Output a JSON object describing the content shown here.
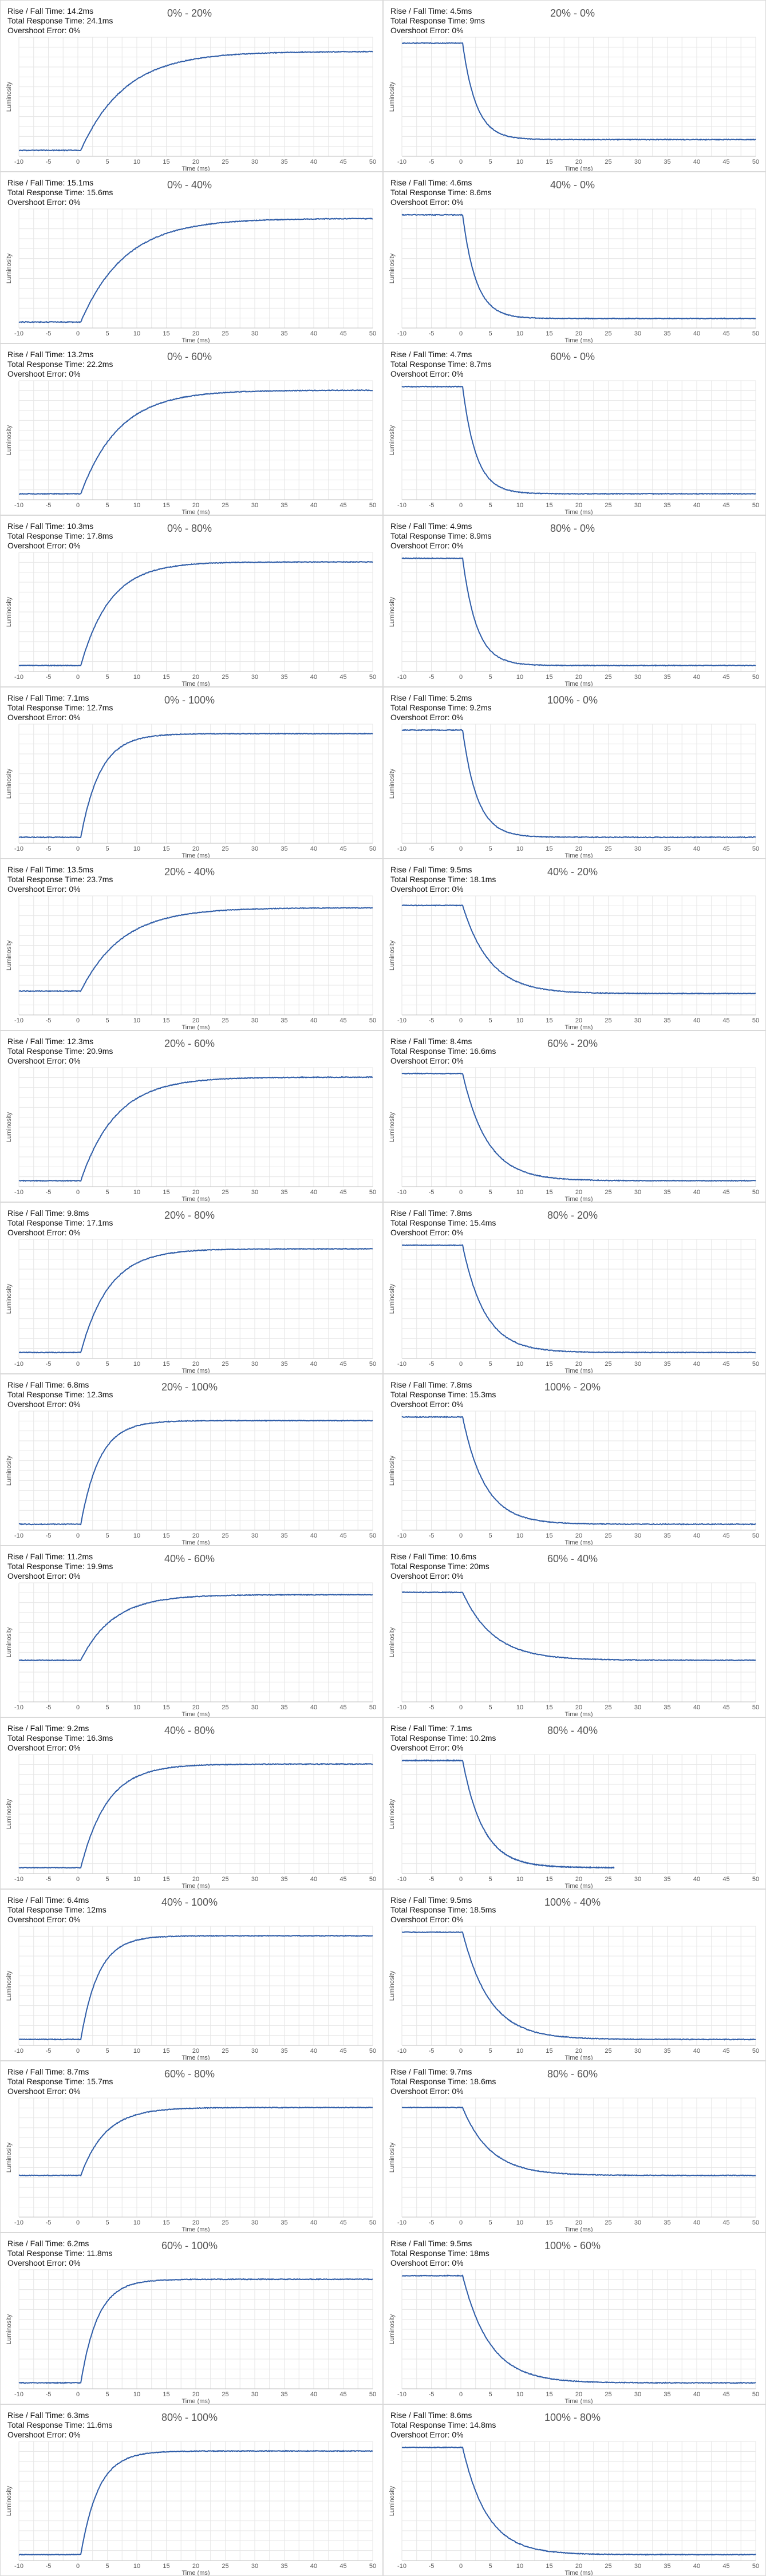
{
  "chart_data": [
    {
      "type": "line",
      "title": "0% - 20%",
      "rise_fall": "Rise / Fall Time: 14.2ms",
      "total": "Total Response Time: 24.1ms",
      "overshoot": "Overshoot Error: 0%",
      "start": 0.05,
      "end": 0.88,
      "tau": 7.5,
      "lag": 0.5,
      "xlabel": "Time (ms)",
      "ylabel": "Luminosity",
      "xlim": [
        -10,
        50
      ],
      "xticks": [
        -10,
        -5,
        0,
        5,
        10,
        15,
        20,
        25,
        30,
        35,
        40,
        45,
        50
      ]
    },
    {
      "type": "line",
      "title": "20% - 0%",
      "rise_fall": "Rise / Fall Time: 4.5ms",
      "total": "Total Response Time: 9ms",
      "overshoot": "Overshoot Error: 0%",
      "start": 0.95,
      "end": 0.14,
      "tau": 2.3,
      "lag": 0.3,
      "xlabel": "Time (ms)",
      "ylabel": "Luminosity",
      "xlim": [
        -10,
        50
      ],
      "xticks": [
        -10,
        -5,
        0,
        5,
        10,
        15,
        20,
        25,
        30,
        35,
        40,
        45,
        50
      ]
    },
    {
      "type": "line",
      "title": "0% - 40%",
      "rise_fall": "Rise / Fall Time: 15.1ms",
      "total": "Total Response Time: 15.6ms",
      "overshoot": "Overshoot Error: 0%",
      "start": 0.05,
      "end": 0.92,
      "tau": 7.5,
      "lag": 0.5,
      "xlabel": "Time (ms)",
      "ylabel": "Luminosity",
      "xlim": [
        -10,
        50
      ],
      "xticks": [
        -10,
        -5,
        0,
        5,
        10,
        15,
        20,
        25,
        30,
        35,
        40,
        45,
        50
      ]
    },
    {
      "type": "line",
      "title": "40% - 0%",
      "rise_fall": "Rise / Fall Time: 4.6ms",
      "total": "Total Response Time: 8.6ms",
      "overshoot": "Overshoot Error: 0%",
      "start": 0.95,
      "end": 0.08,
      "tau": 2.3,
      "lag": 0.3,
      "xlabel": "Time (ms)",
      "ylabel": "Luminosity",
      "xlim": [
        -10,
        50
      ],
      "xticks": [
        -10,
        -5,
        0,
        5,
        10,
        15,
        20,
        25,
        30,
        35,
        40,
        45,
        50
      ]
    },
    {
      "type": "line",
      "title": "0% - 60%",
      "rise_fall": "Rise / Fall Time: 13.2ms",
      "total": "Total Response Time: 22.2ms",
      "overshoot": "Overshoot Error: 0%",
      "start": 0.05,
      "end": 0.92,
      "tau": 6.5,
      "lag": 0.5,
      "xlabel": "Time (ms)",
      "ylabel": "Luminosity",
      "xlim": [
        -10,
        50
      ],
      "xticks": [
        -10,
        -5,
        0,
        5,
        10,
        15,
        20,
        25,
        30,
        35,
        40,
        45,
        50
      ]
    },
    {
      "type": "line",
      "title": "60% - 0%",
      "rise_fall": "Rise / Fall Time: 4.7ms",
      "total": "Total Response Time: 8.7ms",
      "overshoot": "Overshoot Error: 0%",
      "start": 0.95,
      "end": 0.05,
      "tau": 2.3,
      "lag": 0.3,
      "xlabel": "Time (ms)",
      "ylabel": "Luminosity",
      "xlim": [
        -10,
        50
      ],
      "xticks": [
        -10,
        -5,
        0,
        5,
        10,
        15,
        20,
        25,
        30,
        35,
        40,
        45,
        50
      ]
    },
    {
      "type": "line",
      "title": "0% - 80%",
      "rise_fall": "Rise / Fall Time: 10.3ms",
      "total": "Total Response Time: 17.8ms",
      "overshoot": "Overshoot Error: 0%",
      "start": 0.05,
      "end": 0.92,
      "tau": 5.0,
      "lag": 0.5,
      "xlabel": "Time (ms)",
      "ylabel": "Luminosity",
      "xlim": [
        -10,
        50
      ],
      "xticks": [
        -10,
        -5,
        0,
        5,
        10,
        15,
        20,
        25,
        30,
        35,
        40,
        45,
        50
      ]
    },
    {
      "type": "line",
      "title": "80% - 0%",
      "rise_fall": "Rise / Fall Time: 4.9ms",
      "total": "Total Response Time: 8.9ms",
      "overshoot": "Overshoot Error: 0%",
      "start": 0.95,
      "end": 0.05,
      "tau": 2.4,
      "lag": 0.3,
      "xlabel": "Time (ms)",
      "ylabel": "Luminosity",
      "xlim": [
        -10,
        50
      ],
      "xticks": [
        -10,
        -5,
        0,
        5,
        10,
        15,
        20,
        25,
        30,
        35,
        40,
        45,
        50
      ]
    },
    {
      "type": "line",
      "title": "0% - 100%",
      "rise_fall": "Rise / Fall Time: 7.1ms",
      "total": "Total Response Time: 12.7ms",
      "overshoot": "Overshoot Error: 0%",
      "start": 0.05,
      "end": 0.92,
      "tau": 3.3,
      "lag": 0.5,
      "xlabel": "Time (ms)",
      "ylabel": "Luminosity",
      "xlim": [
        -10,
        50
      ],
      "xticks": [
        -10,
        -5,
        0,
        5,
        10,
        15,
        20,
        25,
        30,
        35,
        40,
        45,
        50
      ]
    },
    {
      "type": "line",
      "title": "100% - 0%",
      "rise_fall": "Rise / Fall Time: 5.2ms",
      "total": "Total Response Time: 9.2ms",
      "overshoot": "Overshoot Error: 0%",
      "start": 0.95,
      "end": 0.05,
      "tau": 2.5,
      "lag": 0.3,
      "xlabel": "Time (ms)",
      "ylabel": "Luminosity",
      "xlim": [
        -10,
        50
      ],
      "xticks": [
        -10,
        -5,
        0,
        5,
        10,
        15,
        20,
        25,
        30,
        35,
        40,
        45,
        50
      ]
    },
    {
      "type": "line",
      "title": "20% - 40%",
      "rise_fall": "Rise / Fall Time: 13.5ms",
      "total": "Total Response Time: 23.7ms",
      "overshoot": "Overshoot Error: 0%",
      "start": 0.2,
      "end": 0.9,
      "tau": 7.0,
      "lag": 0.5,
      "xlabel": "Time (ms)",
      "ylabel": "Luminosity",
      "xlim": [
        -10,
        50
      ],
      "xticks": [
        -10,
        -5,
        0,
        5,
        10,
        15,
        20,
        25,
        30,
        35,
        40,
        45,
        50
      ]
    },
    {
      "type": "line",
      "title": "40% - 20%",
      "rise_fall": "Rise / Fall Time: 9.5ms",
      "total": "Total Response Time: 18.1ms",
      "overshoot": "Overshoot Error: 0%",
      "start": 0.92,
      "end": 0.18,
      "tau": 4.6,
      "lag": 0.3,
      "xlabel": "Time (ms)",
      "ylabel": "Luminosity",
      "xlim": [
        -10,
        50
      ],
      "xticks": [
        -10,
        -5,
        0,
        5,
        10,
        15,
        20,
        25,
        30,
        35,
        40,
        45,
        50
      ]
    },
    {
      "type": "line",
      "title": "20% - 60%",
      "rise_fall": "Rise / Fall Time: 12.3ms",
      "total": "Total Response Time: 20.9ms",
      "overshoot": "Overshoot Error: 0%",
      "start": 0.05,
      "end": 0.92,
      "tau": 6.0,
      "lag": 0.5,
      "xlabel": "Time (ms)",
      "ylabel": "Luminosity",
      "xlim": [
        -10,
        50
      ],
      "xticks": [
        -10,
        -5,
        0,
        5,
        10,
        15,
        20,
        25,
        30,
        35,
        40,
        45,
        50
      ]
    },
    {
      "type": "line",
      "title": "60% - 20%",
      "rise_fall": "Rise / Fall Time: 8.4ms",
      "total": "Total Response Time: 16.6ms",
      "overshoot": "Overshoot Error: 0%",
      "start": 0.95,
      "end": 0.05,
      "tau": 4.2,
      "lag": 0.3,
      "xlabel": "Time (ms)",
      "ylabel": "Luminosity",
      "xlim": [
        -10,
        50
      ],
      "xticks": [
        -10,
        -5,
        0,
        5,
        10,
        15,
        20,
        25,
        30,
        35,
        40,
        45,
        50
      ]
    },
    {
      "type": "line",
      "title": "20% - 80%",
      "rise_fall": "Rise / Fall Time: 9.8ms",
      "total": "Total Response Time: 17.1ms",
      "overshoot": "Overshoot Error: 0%",
      "start": 0.05,
      "end": 0.92,
      "tau": 4.8,
      "lag": 0.5,
      "xlabel": "Time (ms)",
      "ylabel": "Luminosity",
      "xlim": [
        -10,
        50
      ],
      "xticks": [
        -10,
        -5,
        0,
        5,
        10,
        15,
        20,
        25,
        30,
        35,
        40,
        45,
        50
      ]
    },
    {
      "type": "line",
      "title": "80% - 20%",
      "rise_fall": "Rise / Fall Time: 7.8ms",
      "total": "Total Response Time: 15.4ms",
      "overshoot": "Overshoot Error: 0%",
      "start": 0.95,
      "end": 0.05,
      "tau": 3.8,
      "lag": 0.3,
      "xlabel": "Time (ms)",
      "ylabel": "Luminosity",
      "xlim": [
        -10,
        50
      ],
      "xticks": [
        -10,
        -5,
        0,
        5,
        10,
        15,
        20,
        25,
        30,
        35,
        40,
        45,
        50
      ]
    },
    {
      "type": "line",
      "title": "20% - 100%",
      "rise_fall": "Rise / Fall Time: 6.8ms",
      "total": "Total Response Time: 12.3ms",
      "overshoot": "Overshoot Error: 0%",
      "start": 0.05,
      "end": 0.92,
      "tau": 3.2,
      "lag": 0.5,
      "xlabel": "Time (ms)",
      "ylabel": "Luminosity",
      "xlim": [
        -10,
        50
      ],
      "xticks": [
        -10,
        -5,
        0,
        5,
        10,
        15,
        20,
        25,
        30,
        35,
        40,
        45,
        50
      ]
    },
    {
      "type": "line",
      "title": "100% - 20%",
      "rise_fall": "Rise / Fall Time: 7.8ms",
      "total": "Total Response Time: 15.3ms",
      "overshoot": "Overshoot Error: 0%",
      "start": 0.95,
      "end": 0.05,
      "tau": 3.8,
      "lag": 0.3,
      "xlabel": "Time (ms)",
      "ylabel": "Luminosity",
      "xlim": [
        -10,
        50
      ],
      "xticks": [
        -10,
        -5,
        0,
        5,
        10,
        15,
        20,
        25,
        30,
        35,
        40,
        45,
        50
      ]
    },
    {
      "type": "line",
      "title": "40% - 60%",
      "rise_fall": "Rise / Fall Time: 11.2ms",
      "total": "Total Response Time: 19.9ms",
      "overshoot": "Overshoot Error: 0%",
      "start": 0.35,
      "end": 0.9,
      "tau": 5.5,
      "lag": 0.5,
      "xlabel": "Time (ms)",
      "ylabel": "Luminosity",
      "xlim": [
        -10,
        50
      ],
      "xticks": [
        -10,
        -5,
        0,
        5,
        10,
        15,
        20,
        25,
        30,
        35,
        40,
        45,
        50
      ]
    },
    {
      "type": "line",
      "title": "60% - 40%",
      "rise_fall": "Rise / Fall Time: 10.6ms",
      "total": "Total Response Time: 20ms",
      "overshoot": "Overshoot Error: 0%",
      "start": 0.92,
      "end": 0.35,
      "tau": 5.2,
      "lag": 0.3,
      "xlabel": "Time (ms)",
      "ylabel": "Luminosity",
      "xlim": [
        -10,
        50
      ],
      "xticks": [
        -10,
        -5,
        0,
        5,
        10,
        15,
        20,
        25,
        30,
        35,
        40,
        45,
        50
      ]
    },
    {
      "type": "line",
      "title": "40% - 80%",
      "rise_fall": "Rise / Fall Time: 9.2ms",
      "total": "Total Response Time: 16.3ms",
      "overshoot": "Overshoot Error: 0%",
      "start": 0.05,
      "end": 0.92,
      "tau": 4.5,
      "lag": 0.5,
      "xlabel": "Time (ms)",
      "ylabel": "Luminosity",
      "xlim": [
        -10,
        50
      ],
      "xticks": [
        -10,
        -5,
        0,
        5,
        10,
        15,
        20,
        25,
        30,
        35,
        40,
        45,
        50
      ]
    },
    {
      "type": "line",
      "title": "80% - 40%",
      "rise_fall": "Rise / Fall Time: 7.1ms",
      "total": "Total Response Time: 10.2ms",
      "overshoot": "Overshoot Error: 0%",
      "start": 0.95,
      "end": 0.05,
      "tau": 3.5,
      "lag": 0.3,
      "xmax_data": 26,
      "xlabel": "Time (ms)",
      "ylabel": "Luminosity",
      "xlim": [
        -10,
        50
      ],
      "xticks": [
        -10,
        -5,
        0,
        5,
        10,
        15,
        20,
        25,
        30,
        35,
        40,
        45,
        50
      ]
    },
    {
      "type": "line",
      "title": "40% - 100%",
      "rise_fall": "Rise / Fall Time: 6.4ms",
      "total": "Total Response Time: 12ms",
      "overshoot": "Overshoot Error: 0%",
      "start": 0.05,
      "end": 0.92,
      "tau": 3.0,
      "lag": 0.5,
      "xlabel": "Time (ms)",
      "ylabel": "Luminosity",
      "xlim": [
        -10,
        50
      ],
      "xticks": [
        -10,
        -5,
        0,
        5,
        10,
        15,
        20,
        25,
        30,
        35,
        40,
        45,
        50
      ]
    },
    {
      "type": "line",
      "title": "100% - 40%",
      "rise_fall": "Rise / Fall Time: 9.5ms",
      "total": "Total Response Time: 18.5ms",
      "overshoot": "Overshoot Error: 0%",
      "start": 0.95,
      "end": 0.05,
      "tau": 4.6,
      "lag": 0.3,
      "xlabel": "Time (ms)",
      "ylabel": "Luminosity",
      "xlim": [
        -10,
        50
      ],
      "xticks": [
        -10,
        -5,
        0,
        5,
        10,
        15,
        20,
        25,
        30,
        35,
        40,
        45,
        50
      ]
    },
    {
      "type": "line",
      "title": "60% - 80%",
      "rise_fall": "Rise / Fall Time: 8.7ms",
      "total": "Total Response Time: 15.7ms",
      "overshoot": "Overshoot Error: 0%",
      "start": 0.35,
      "end": 0.92,
      "tau": 4.2,
      "lag": 0.5,
      "xlabel": "Time (ms)",
      "ylabel": "Luminosity",
      "xlim": [
        -10,
        50
      ],
      "xticks": [
        -10,
        -5,
        0,
        5,
        10,
        15,
        20,
        25,
        30,
        35,
        40,
        45,
        50
      ]
    },
    {
      "type": "line",
      "title": "80% - 60%",
      "rise_fall": "Rise / Fall Time: 9.7ms",
      "total": "Total Response Time: 18.6ms",
      "overshoot": "Overshoot Error: 0%",
      "start": 0.92,
      "end": 0.35,
      "tau": 4.7,
      "lag": 0.3,
      "xlabel": "Time (ms)",
      "ylabel": "Luminosity",
      "xlim": [
        -10,
        50
      ],
      "xticks": [
        -10,
        -5,
        0,
        5,
        10,
        15,
        20,
        25,
        30,
        35,
        40,
        45,
        50
      ]
    },
    {
      "type": "line",
      "title": "60% - 100%",
      "rise_fall": "Rise / Fall Time: 6.2ms",
      "total": "Total Response Time: 11.8ms",
      "overshoot": "Overshoot Error: 0%",
      "start": 0.05,
      "end": 0.92,
      "tau": 2.9,
      "lag": 0.5,
      "xlabel": "Time (ms)",
      "ylabel": "Luminosity",
      "xlim": [
        -10,
        50
      ],
      "xticks": [
        -10,
        -5,
        0,
        5,
        10,
        15,
        20,
        25,
        30,
        35,
        40,
        45,
        50
      ]
    },
    {
      "type": "line",
      "title": "100% - 60%",
      "rise_fall": "Rise / Fall Time: 9.5ms",
      "total": "Total Response Time: 18ms",
      "overshoot": "Overshoot Error: 0%",
      "start": 0.95,
      "end": 0.05,
      "tau": 4.6,
      "lag": 0.3,
      "xlabel": "Time (ms)",
      "ylabel": "Luminosity",
      "xlim": [
        -10,
        50
      ],
      "xticks": [
        -10,
        -5,
        0,
        5,
        10,
        15,
        20,
        25,
        30,
        35,
        40,
        45,
        50
      ]
    },
    {
      "type": "line",
      "title": "80% - 100%",
      "rise_fall": "Rise / Fall Time: 6.3ms",
      "total": "Total Response Time: 11.6ms",
      "overshoot": "Overshoot Error: 0%",
      "start": 0.05,
      "end": 0.92,
      "tau": 3.0,
      "lag": 0.5,
      "xlabel": "Time (ms)",
      "ylabel": "Luminosity",
      "xlim": [
        -10,
        50
      ],
      "xticks": [
        -10,
        -5,
        0,
        5,
        10,
        15,
        20,
        25,
        30,
        35,
        40,
        45,
        50
      ]
    },
    {
      "type": "line",
      "title": "100% - 80%",
      "rise_fall": "Rise / Fall Time: 8.6ms",
      "total": "Total Response Time: 14.8ms",
      "overshoot": "Overshoot Error: 0%",
      "start": 0.95,
      "end": 0.05,
      "tau": 4.2,
      "lag": 0.3,
      "xlabel": "Time (ms)",
      "ylabel": "Luminosity",
      "xlim": [
        -10,
        50
      ],
      "xticks": [
        -10,
        -5,
        0,
        5,
        10,
        15,
        20,
        25,
        30,
        35,
        40,
        45,
        50
      ]
    }
  ],
  "colors": {
    "line": "#2f5da8",
    "grid": "#e6e6e6",
    "axis": "#bfbfbf"
  }
}
